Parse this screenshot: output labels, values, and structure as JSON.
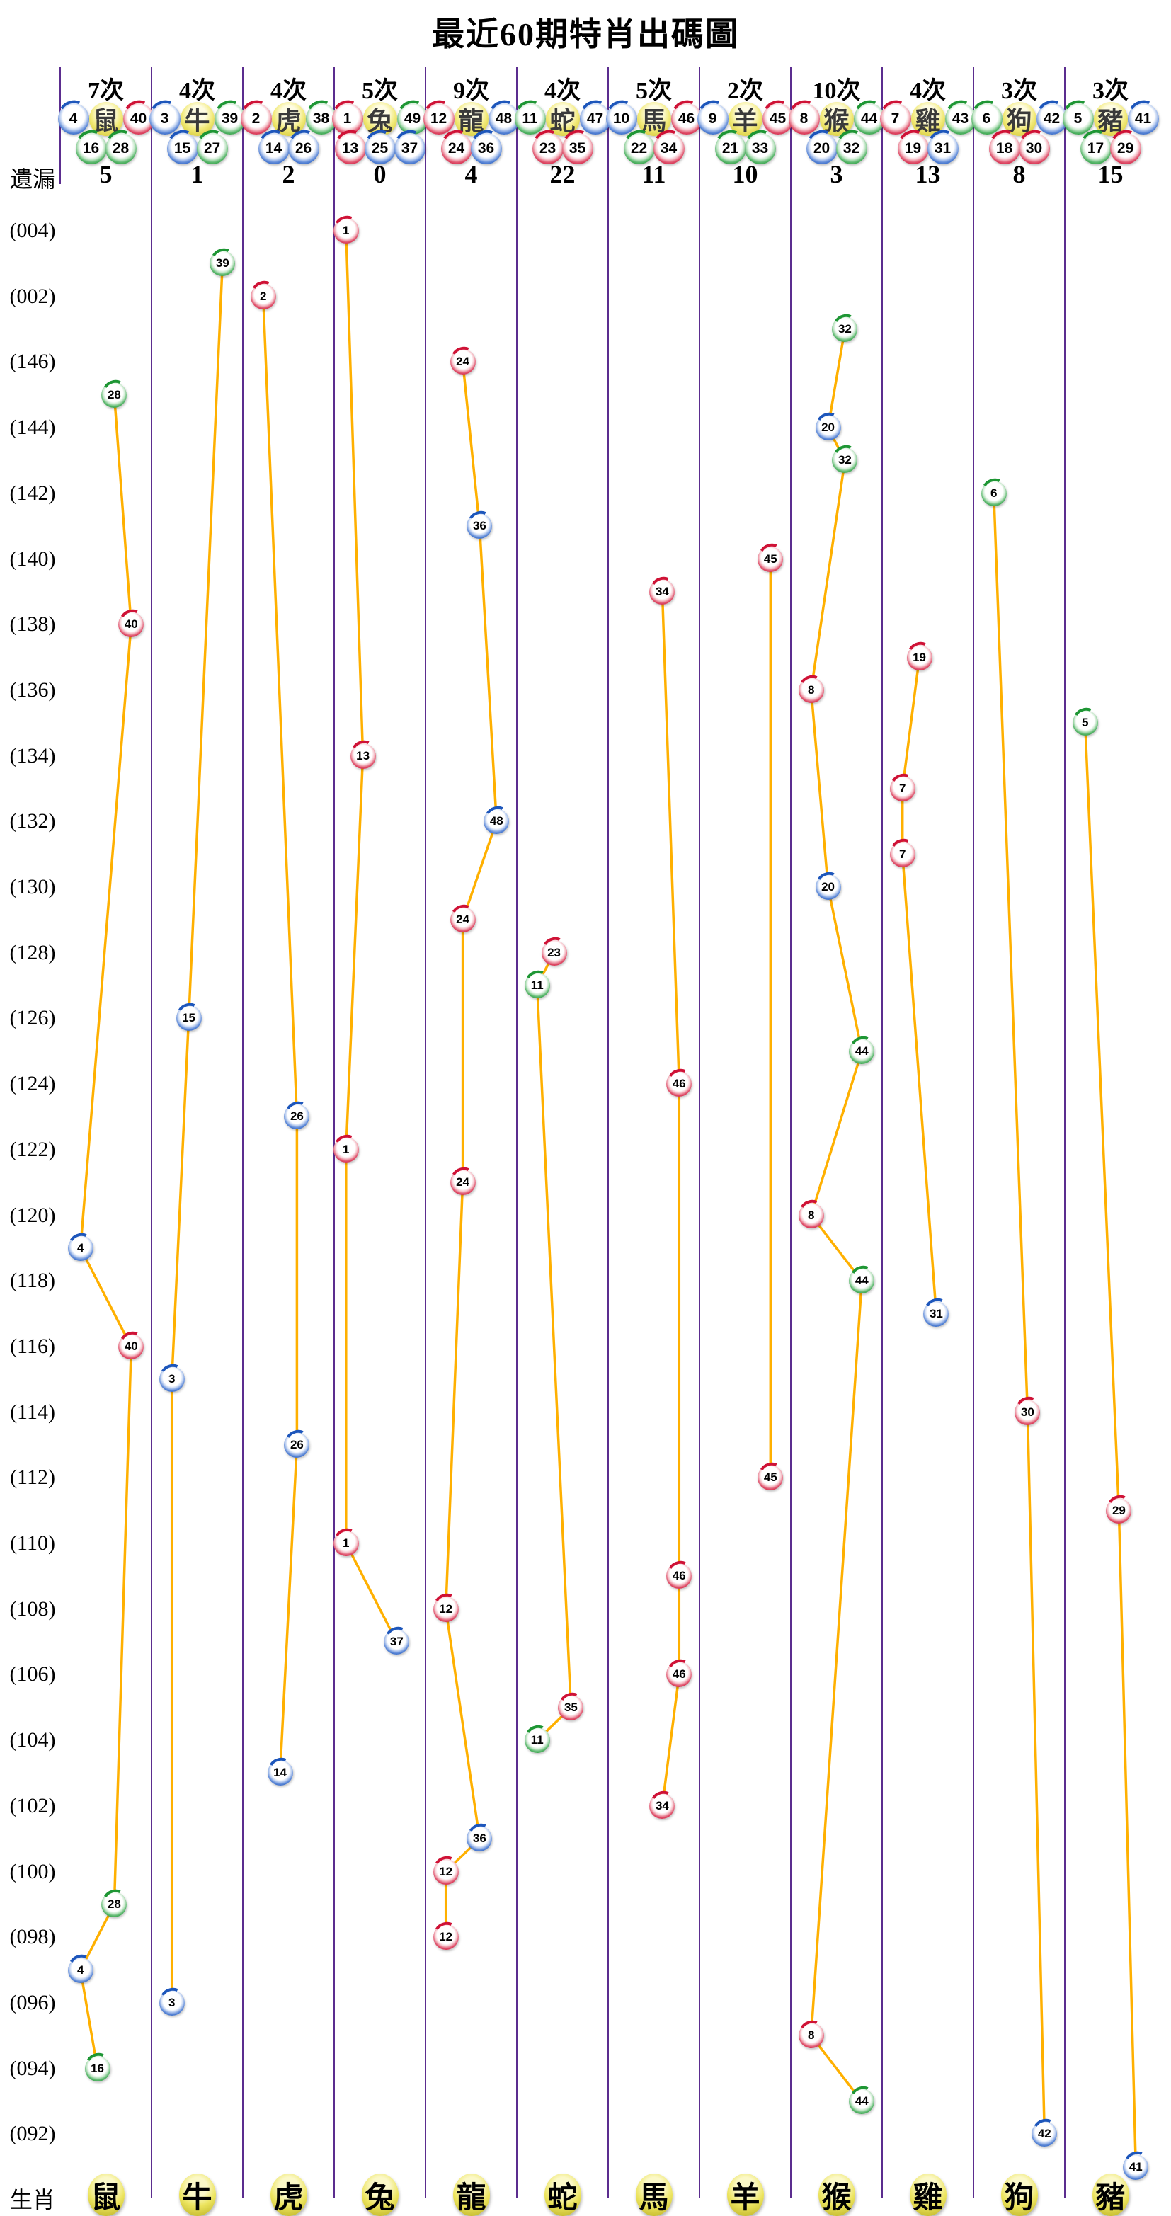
{
  "chart_data": {
    "type": "scatter",
    "title": "最近60期特肖出碼圖",
    "missing_label": "遺漏",
    "zodiac_row_label": "生肖",
    "rows": 60,
    "row_labels": [
      "(004)",
      "(002)",
      "(146)",
      "(144)",
      "(142)",
      "(140)",
      "(138)",
      "(136)",
      "(134)",
      "(132)",
      "(130)",
      "(128)",
      "(126)",
      "(124)",
      "(122)",
      "(120)",
      "(118)",
      "(116)",
      "(114)",
      "(112)",
      "(110)",
      "(108)",
      "(106)",
      "(104)",
      "(102)",
      "(100)",
      "(098)",
      "(096)",
      "(094)",
      "(092)"
    ],
    "ball_colors": {
      "red": [
        1,
        2,
        7,
        8,
        12,
        13,
        18,
        19,
        23,
        24,
        29,
        30,
        34,
        35,
        40,
        45,
        46
      ],
      "blue": [
        3,
        4,
        9,
        10,
        14,
        15,
        20,
        25,
        26,
        31,
        36,
        37,
        41,
        42,
        47,
        48
      ],
      "green": [
        5,
        6,
        11,
        16,
        17,
        21,
        22,
        27,
        28,
        32,
        33,
        38,
        39,
        43,
        44,
        49
      ]
    },
    "palette": {
      "line": "#ffb000",
      "separator": "#5b2d8f",
      "red": "#cf1236",
      "blue": "#1d56bb",
      "green": "#1e9634",
      "zodiac_ball": "#e6dd55"
    },
    "columns": [
      {
        "zodiac": "鼠",
        "times": "7次",
        "missing": "5",
        "numbers": [
          4,
          16,
          28,
          40
        ],
        "balls": [
          {
            "row": 6,
            "num": 28
          },
          {
            "row": 13,
            "num": 40
          },
          {
            "row": 32,
            "num": 4
          },
          {
            "row": 35,
            "num": 40
          },
          {
            "row": 52,
            "num": 28
          },
          {
            "row": 54,
            "num": 4
          },
          {
            "row": 57,
            "num": 16
          }
        ]
      },
      {
        "zodiac": "牛",
        "times": "4次",
        "missing": "1",
        "numbers": [
          3,
          15,
          27,
          39
        ],
        "balls": [
          {
            "row": 2,
            "num": 39
          },
          {
            "row": 25,
            "num": 15
          },
          {
            "row": 36,
            "num": 3
          },
          {
            "row": 55,
            "num": 3
          }
        ]
      },
      {
        "zodiac": "虎",
        "times": "4次",
        "missing": "2",
        "numbers": [
          2,
          14,
          26,
          38
        ],
        "balls": [
          {
            "row": 3,
            "num": 2
          },
          {
            "row": 28,
            "num": 26
          },
          {
            "row": 38,
            "num": 26
          },
          {
            "row": 48,
            "num": 14
          }
        ]
      },
      {
        "zodiac": "兔",
        "times": "5次",
        "missing": "0",
        "numbers": [
          1,
          13,
          25,
          37,
          49
        ],
        "balls": [
          {
            "row": 1,
            "num": 1
          },
          {
            "row": 17,
            "num": 13
          },
          {
            "row": 29,
            "num": 1
          },
          {
            "row": 41,
            "num": 1
          },
          {
            "row": 44,
            "num": 37
          }
        ]
      },
      {
        "zodiac": "龍",
        "times": "9次",
        "missing": "4",
        "numbers": [
          12,
          24,
          36,
          48
        ],
        "balls": [
          {
            "row": 5,
            "num": 24
          },
          {
            "row": 10,
            "num": 36
          },
          {
            "row": 19,
            "num": 48
          },
          {
            "row": 22,
            "num": 24
          },
          {
            "row": 30,
            "num": 24
          },
          {
            "row": 43,
            "num": 12
          },
          {
            "row": 50,
            "num": 36
          },
          {
            "row": 51,
            "num": 12
          },
          {
            "row": 53,
            "num": 12
          }
        ]
      },
      {
        "zodiac": "蛇",
        "times": "4次",
        "missing": "22",
        "numbers": [
          11,
          23,
          35,
          47
        ],
        "balls": [
          {
            "row": 23,
            "num": 23
          },
          {
            "row": 24,
            "num": 11
          },
          {
            "row": 46,
            "num": 35
          },
          {
            "row": 47,
            "num": 11
          }
        ]
      },
      {
        "zodiac": "馬",
        "times": "5次",
        "missing": "11",
        "numbers": [
          10,
          22,
          34,
          46
        ],
        "balls": [
          {
            "row": 12,
            "num": 34
          },
          {
            "row": 27,
            "num": 46
          },
          {
            "row": 42,
            "num": 46
          },
          {
            "row": 45,
            "num": 46
          },
          {
            "row": 49,
            "num": 34
          }
        ]
      },
      {
        "zodiac": "羊",
        "times": "2次",
        "missing": "10",
        "numbers": [
          9,
          21,
          33,
          45
        ],
        "balls": [
          {
            "row": 11,
            "num": 45
          },
          {
            "row": 39,
            "num": 45
          }
        ]
      },
      {
        "zodiac": "猴",
        "times": "10次",
        "missing": "3",
        "numbers": [
          8,
          20,
          32,
          44
        ],
        "balls": [
          {
            "row": 4,
            "num": 32
          },
          {
            "row": 7,
            "num": 20
          },
          {
            "row": 8,
            "num": 32
          },
          {
            "row": 15,
            "num": 8
          },
          {
            "row": 21,
            "num": 20
          },
          {
            "row": 26,
            "num": 44
          },
          {
            "row": 31,
            "num": 8
          },
          {
            "row": 33,
            "num": 44
          },
          {
            "row": 56,
            "num": 8
          },
          {
            "row": 58,
            "num": 44
          }
        ]
      },
      {
        "zodiac": "雞",
        "times": "4次",
        "missing": "13",
        "numbers": [
          7,
          19,
          31,
          43
        ],
        "balls": [
          {
            "row": 14,
            "num": 19
          },
          {
            "row": 18,
            "num": 7
          },
          {
            "row": 20,
            "num": 7
          },
          {
            "row": 34,
            "num": 31
          }
        ]
      },
      {
        "zodiac": "狗",
        "times": "3次",
        "missing": "8",
        "numbers": [
          6,
          18,
          30,
          42
        ],
        "balls": [
          {
            "row": 9,
            "num": 6
          },
          {
            "row": 37,
            "num": 30
          },
          {
            "row": 59,
            "num": 42
          }
        ]
      },
      {
        "zodiac": "豬",
        "times": "3次",
        "missing": "15",
        "numbers": [
          5,
          17,
          29,
          41
        ],
        "balls": [
          {
            "row": 16,
            "num": 5
          },
          {
            "row": 40,
            "num": 29
          },
          {
            "row": 60,
            "num": 41
          }
        ]
      }
    ]
  }
}
